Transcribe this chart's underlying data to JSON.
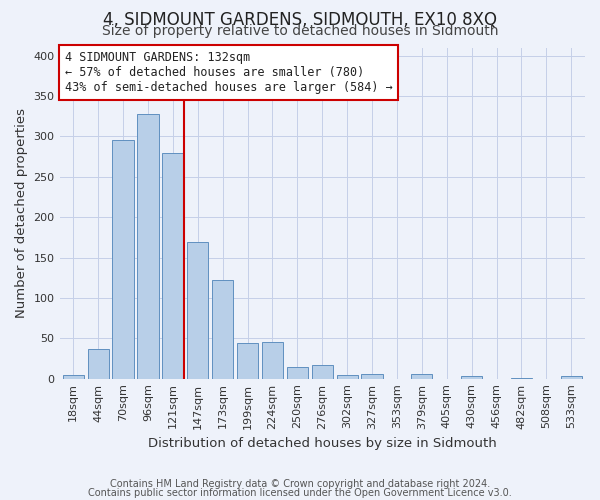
{
  "title": "4, SIDMOUNT GARDENS, SIDMOUTH, EX10 8XQ",
  "subtitle": "Size of property relative to detached houses in Sidmouth",
  "xlabel": "Distribution of detached houses by size in Sidmouth",
  "ylabel": "Number of detached properties",
  "bar_labels": [
    "18sqm",
    "44sqm",
    "70sqm",
    "96sqm",
    "121sqm",
    "147sqm",
    "173sqm",
    "199sqm",
    "224sqm",
    "250sqm",
    "276sqm",
    "302sqm",
    "327sqm",
    "353sqm",
    "379sqm",
    "405sqm",
    "430sqm",
    "456sqm",
    "482sqm",
    "508sqm",
    "533sqm"
  ],
  "bar_values": [
    4,
    37,
    295,
    328,
    280,
    169,
    122,
    44,
    46,
    15,
    17,
    5,
    6,
    0,
    6,
    0,
    3,
    0,
    1,
    0,
    3
  ],
  "bar_color": "#b8cfe8",
  "bar_edge_color": "#6090c0",
  "background_color": "#eef2fa",
  "grid_color": "#c5cfe8",
  "vline_color": "#cc0000",
  "annotation_title": "4 SIDMOUNT GARDENS: 132sqm",
  "annotation_line1": "← 57% of detached houses are smaller (780)",
  "annotation_line2": "43% of semi-detached houses are larger (584) →",
  "annotation_box_edgecolor": "#cc0000",
  "ylim": [
    0,
    410
  ],
  "yticks": [
    0,
    50,
    100,
    150,
    200,
    250,
    300,
    350,
    400
  ],
  "footer1": "Contains HM Land Registry data © Crown copyright and database right 2024.",
  "footer2": "Contains public sector information licensed under the Open Government Licence v3.0.",
  "title_fontsize": 12,
  "subtitle_fontsize": 10,
  "axis_label_fontsize": 9.5,
  "tick_fontsize": 8,
  "annotation_fontsize": 8.5,
  "footer_fontsize": 7
}
